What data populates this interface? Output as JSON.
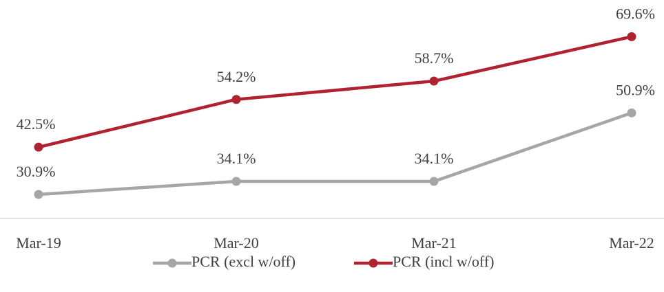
{
  "chart_data": {
    "type": "line",
    "categories": [
      "Mar-19",
      "Mar-20",
      "Mar-21",
      "Mar-22"
    ],
    "series": [
      {
        "name": "PCR (excl w/off)",
        "color": "#a6a6a6",
        "values": [
          30.9,
          34.1,
          34.1,
          50.9
        ],
        "value_labels": [
          "30.9%",
          "34.1%",
          "34.1%",
          "50.9%"
        ]
      },
      {
        "name": "PCR (incl w/off)",
        "color": "#b0222f",
        "values": [
          42.5,
          54.2,
          58.7,
          69.6
        ],
        "value_labels": [
          "42.5%",
          "54.2%",
          "58.7%",
          "69.6%"
        ]
      }
    ],
    "ylim": [
      25,
      70
    ],
    "legend": "bottom"
  }
}
